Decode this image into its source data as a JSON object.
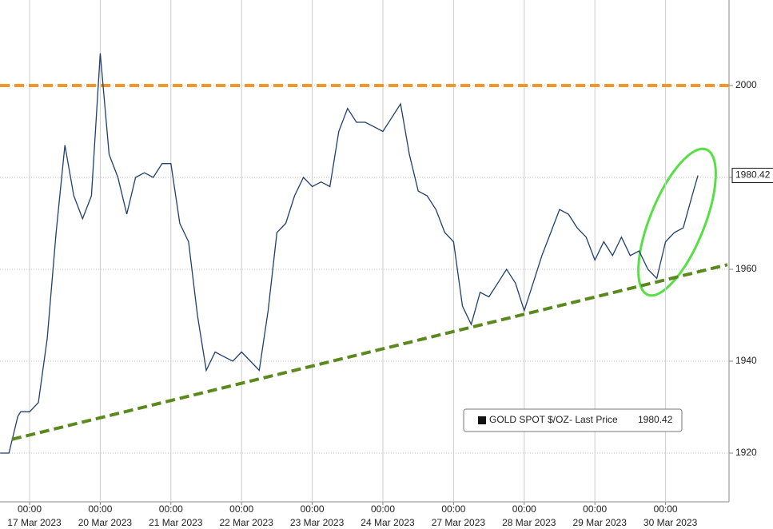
{
  "chart_data": {
    "type": "line",
    "series": [
      {
        "name": "GOLD SPOT $/OZ",
        "color": "#1f3f6e",
        "x": [
          "2023-03-16T14:00",
          "2023-03-16T17:00",
          "2023-03-16T20:00",
          "2023-03-16T21:00",
          "2023-03-17T00:00",
          "2023-03-17T03:00",
          "2023-03-17T06:00",
          "2023-03-17T09:00",
          "2023-03-17T12:00",
          "2023-03-17T15:00",
          "2023-03-17T18:00",
          "2023-03-17T21:00",
          "2023-03-20T00:00",
          "2023-03-20T03:00",
          "2023-03-20T06:00",
          "2023-03-20T09:00",
          "2023-03-20T12:00",
          "2023-03-20T15:00",
          "2023-03-20T18:00",
          "2023-03-20T21:00",
          "2023-03-21T00:00",
          "2023-03-21T03:00",
          "2023-03-21T06:00",
          "2023-03-21T09:00",
          "2023-03-21T12:00",
          "2023-03-21T15:00",
          "2023-03-21T18:00",
          "2023-03-21T21:00",
          "2023-03-22T00:00",
          "2023-03-22T03:00",
          "2023-03-22T06:00",
          "2023-03-22T09:00",
          "2023-03-22T12:00",
          "2023-03-22T15:00",
          "2023-03-22T18:00",
          "2023-03-22T21:00",
          "2023-03-23T00:00",
          "2023-03-23T03:00",
          "2023-03-23T06:00",
          "2023-03-23T09:00",
          "2023-03-23T12:00",
          "2023-03-23T15:00",
          "2023-03-23T18:00",
          "2023-03-23T21:00",
          "2023-03-24T00:00",
          "2023-03-24T03:00",
          "2023-03-24T06:00",
          "2023-03-24T09:00",
          "2023-03-24T12:00",
          "2023-03-24T15:00",
          "2023-03-24T18:00",
          "2023-03-24T21:00",
          "2023-03-27T00:00",
          "2023-03-27T03:00",
          "2023-03-27T06:00",
          "2023-03-27T09:00",
          "2023-03-27T12:00",
          "2023-03-27T15:00",
          "2023-03-27T18:00",
          "2023-03-27T21:00",
          "2023-03-28T00:00",
          "2023-03-28T03:00",
          "2023-03-28T06:00",
          "2023-03-28T09:00",
          "2023-03-28T12:00",
          "2023-03-28T15:00",
          "2023-03-28T18:00",
          "2023-03-28T21:00",
          "2023-03-29T00:00",
          "2023-03-29T03:00",
          "2023-03-29T06:00",
          "2023-03-29T09:00",
          "2023-03-29T12:00",
          "2023-03-29T15:00",
          "2023-03-29T18:00",
          "2023-03-29T21:00",
          "2023-03-30T00:00",
          "2023-03-30T03:00",
          "2023-03-30T06:00",
          "2023-03-30T09:00",
          "2023-03-30T11:00"
        ],
        "values": [
          1920,
          1920,
          1928,
          1929,
          1929,
          1931,
          1945,
          1968,
          1987,
          1976,
          1971,
          1976,
          2007,
          1985,
          1980,
          1972,
          1980,
          1981,
          1980,
          1983,
          1983,
          1970,
          1966,
          1950,
          1938,
          1942,
          1941,
          1940,
          1942,
          1940,
          1938,
          1951,
          1968,
          1970,
          1976,
          1980,
          1978,
          1979,
          1978,
          1990,
          1995,
          1992,
          1992,
          1991,
          1990,
          1993,
          1996,
          1985,
          1977,
          1976,
          1973,
          1968,
          1966,
          1952,
          1948,
          1955,
          1954,
          1957,
          1960,
          1957,
          1951,
          1957,
          1963,
          1968,
          1973,
          1972,
          1969,
          1967,
          1962,
          1966,
          1963,
          1967,
          1963,
          1964,
          1960,
          1958,
          1966,
          1968,
          1969,
          1976,
          1980.42
        ]
      }
    ],
    "legend_suffix": "- Last Price",
    "last_price": 1980.42,
    "legend_position": "bottom-right",
    "ylim": [
      1909.4,
      2018.6
    ],
    "yticks": [
      1920,
      1940,
      1960,
      1980,
      2000
    ],
    "xticks": [
      {
        "value": "2023-03-17T00:00",
        "label": "00:00"
      },
      {
        "value": "2023-03-20T00:00",
        "label": "00:00"
      },
      {
        "value": "2023-03-21T00:00",
        "label": "00:00"
      },
      {
        "value": "2023-03-22T00:00",
        "label": "00:00"
      },
      {
        "value": "2023-03-23T00:00",
        "label": "00:00"
      },
      {
        "value": "2023-03-24T00:00",
        "label": "00:00"
      },
      {
        "value": "2023-03-27T00:00",
        "label": "00:00"
      },
      {
        "value": "2023-03-28T00:00",
        "label": "00:00"
      },
      {
        "value": "2023-03-29T00:00",
        "label": "00:00"
      },
      {
        "value": "2023-03-30T00:00",
        "label": "00:00"
      }
    ],
    "xtick_dates": [
      "17 Mar 2023",
      "20 Mar 2023",
      "21 Mar 2023",
      "22 Mar 2023",
      "23 Mar 2023",
      "24 Mar 2023",
      "27 Mar 2023",
      "28 Mar 2023",
      "29 Mar 2023",
      "30 Mar 2023"
    ],
    "grid": true,
    "resistance": {
      "y": 2000,
      "color": "#f0962a"
    },
    "support": {
      "x": [
        "2023-03-16T18:00",
        "2023-03-30T21:00"
      ],
      "y": [
        1923,
        1961
      ],
      "color": "#5a8a1e"
    }
  }
}
